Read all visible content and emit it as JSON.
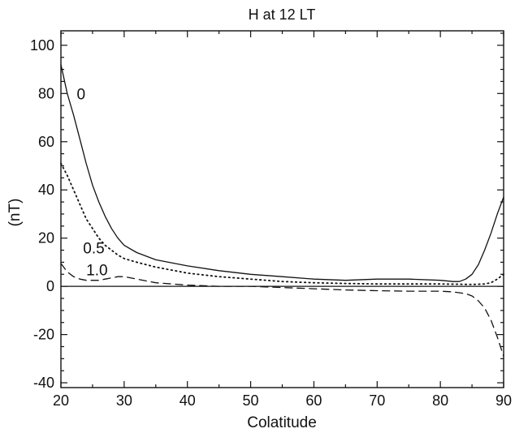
{
  "chart_data": {
    "type": "line",
    "title": "H at 12 LT",
    "xlabel": "Colatitude",
    "ylabel": "(nT)",
    "xlim": [
      20,
      90
    ],
    "ylim": [
      -42,
      106
    ],
    "xticks": [
      20,
      30,
      40,
      50,
      60,
      70,
      80,
      90
    ],
    "yticks": [
      -40,
      -20,
      0,
      20,
      40,
      60,
      80,
      100
    ],
    "grid": false,
    "zero_line": true,
    "series": [
      {
        "name": "0",
        "style": "solid",
        "label_at": [
          22.5,
          80
        ],
        "points": [
          [
            20,
            92
          ],
          [
            21,
            80
          ],
          [
            22,
            71
          ],
          [
            23,
            61
          ],
          [
            24,
            51
          ],
          [
            25,
            42
          ],
          [
            26,
            35
          ],
          [
            27,
            29
          ],
          [
            28,
            24
          ],
          [
            29,
            20
          ],
          [
            30,
            17
          ],
          [
            32,
            14
          ],
          [
            35,
            11
          ],
          [
            40,
            8.5
          ],
          [
            45,
            6.5
          ],
          [
            50,
            5
          ],
          [
            55,
            4
          ],
          [
            60,
            3
          ],
          [
            65,
            2.5
          ],
          [
            70,
            3
          ],
          [
            75,
            3
          ],
          [
            80,
            2.5
          ],
          [
            82,
            2
          ],
          [
            83,
            2
          ],
          [
            84,
            3
          ],
          [
            85,
            5
          ],
          [
            86,
            9
          ],
          [
            87,
            15
          ],
          [
            88,
            22
          ],
          [
            89,
            30
          ],
          [
            90,
            37
          ]
        ]
      },
      {
        "name": "0.5",
        "style": "dotted",
        "label_at": [
          23.5,
          16
        ],
        "points": [
          [
            20,
            51
          ],
          [
            21,
            46
          ],
          [
            22,
            40
          ],
          [
            23,
            34
          ],
          [
            24,
            28
          ],
          [
            25,
            24
          ],
          [
            26,
            20
          ],
          [
            27,
            17
          ],
          [
            28,
            15
          ],
          [
            29,
            13
          ],
          [
            30,
            11.5
          ],
          [
            32,
            10
          ],
          [
            35,
            8
          ],
          [
            40,
            5.5
          ],
          [
            45,
            4
          ],
          [
            50,
            3
          ],
          [
            55,
            2
          ],
          [
            60,
            1.5
          ],
          [
            65,
            1.2
          ],
          [
            70,
            1
          ],
          [
            75,
            1
          ],
          [
            80,
            1
          ],
          [
            85,
            0.8
          ],
          [
            87,
            1
          ],
          [
            88,
            1.5
          ],
          [
            89,
            3
          ],
          [
            90,
            5
          ]
        ]
      },
      {
        "name": "1.0",
        "style": "dashed",
        "label_at": [
          24,
          7
        ],
        "points": [
          [
            20,
            9.5
          ],
          [
            21,
            6
          ],
          [
            22,
            4
          ],
          [
            23,
            3
          ],
          [
            24,
            2.5
          ],
          [
            25,
            2.5
          ],
          [
            26,
            2.5
          ],
          [
            27,
            3
          ],
          [
            28,
            3.5
          ],
          [
            29,
            4
          ],
          [
            30,
            4
          ],
          [
            32,
            3
          ],
          [
            35,
            1.5
          ],
          [
            40,
            0.5
          ],
          [
            45,
            0
          ],
          [
            50,
            0
          ],
          [
            55,
            -0.5
          ],
          [
            60,
            -1
          ],
          [
            65,
            -1.5
          ],
          [
            70,
            -1.8
          ],
          [
            75,
            -2
          ],
          [
            80,
            -2
          ],
          [
            82,
            -2.3
          ],
          [
            84,
            -3
          ],
          [
            85,
            -4
          ],
          [
            86,
            -6
          ],
          [
            87,
            -9
          ],
          [
            88,
            -14
          ],
          [
            89,
            -21
          ],
          [
            90,
            -29
          ]
        ]
      }
    ]
  }
}
